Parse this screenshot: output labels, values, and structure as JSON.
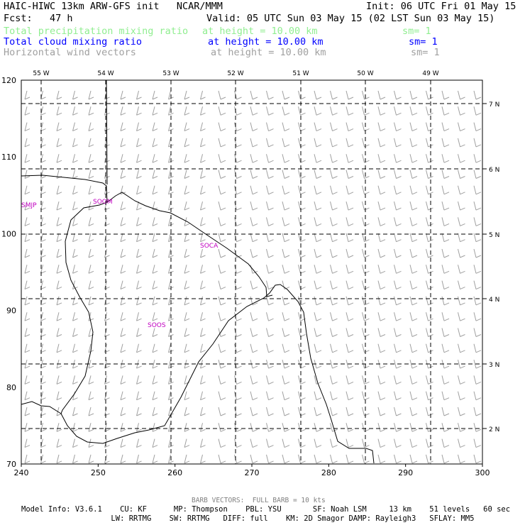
{
  "header": {
    "title": "HAIC-HIWC 13km ARW-GFS init   NCAR/MMM",
    "init": "Init: 06 UTC Fri 01 May 15",
    "fcst": "Fcst:   47 h",
    "valid": "Valid: 05 UTC Sun 03 May 15 (02 LST Sun 03 May 15)",
    "fields": [
      {
        "name": "Total precipitation mixing ratio",
        "height": "at height = 10.00 km",
        "sm": "sm= 1",
        "color": "#90ee90"
      },
      {
        "name": "Total cloud mixing ratio",
        "height": "at height = 10.00 km",
        "sm": "sm= 1",
        "color": "#0000ff"
      },
      {
        "name": "Horizontal wind vectors",
        "height": "at height = 10.00 km",
        "sm": "sm= 1",
        "color": "#a0a0a0"
      }
    ]
  },
  "map": {
    "x_ticks": [
      "240",
      "250",
      "260",
      "270",
      "280",
      "290",
      "300"
    ],
    "y_ticks": [
      "120",
      "110",
      "100",
      "90",
      "80",
      "70"
    ],
    "lon_labels": [
      "55 W",
      "54 W",
      "53 W",
      "52 W",
      "51 W",
      "50 W",
      "49 W"
    ],
    "lat_labels": [
      "7 N",
      "6 N",
      "5 N",
      "4 N",
      "3 N",
      "2 N"
    ],
    "stations": [
      "SMJP",
      "SOCA",
      "SOOS",
      "SOOM"
    ],
    "station_color": "#c000c0",
    "barb_color": "#a0a0a0"
  },
  "footer": {
    "barb_note": "BARB VECTORS:  FULL BARB = 10 kts",
    "line1": "Model Info: V3.6.1    CU: KF      MP: Thompson    PBL: YSU       SF: Noah LSM     13 km    51 levels   60 sec",
    "line2": "                    LW: RRTMG    SW: RRTMG   DIFF: full    KM: 2D Smagor DAMP: Rayleigh3   SFLAY: MM5"
  }
}
